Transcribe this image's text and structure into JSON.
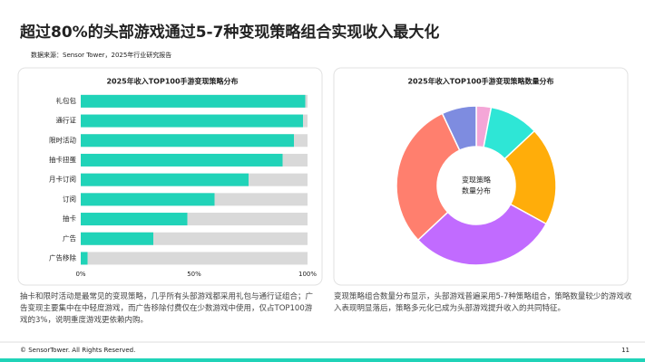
{
  "title": "超过80%的头部游戏通过5-7种变现策略组合实现收入最大化",
  "source": "数据来源：Sensor Tower，2025年行业研究报告",
  "notes": [
    "抽卡和限时活动是最常见的变现策略，几乎所有头部游戏都采用礼包与通行证组合；广告变现主要集中在中轻度游戏，而广告移除付费仅在少数游戏中使用，仅占TOP100游戏的3%，说明重度游戏更依赖内购。",
    "变现策略组合数量分布显示，头部游戏普遍采用5-7种策略组合，策略数量较少的游戏收入表现明显落后，策略多元化已成为头部游戏提升收入的共同特征。"
  ],
  "footer": "© SensorTower. All Rights Reserved.",
  "page_number": "11",
  "chart_data": [
    {
      "type": "bar",
      "orientation": "horizontal",
      "title": "2025年收入TOP100手游变现策略分布",
      "categories": [
        "礼包包",
        "通行证",
        "限时活动",
        "抽卡扭蛋",
        "月卡订阅",
        "订阅",
        "抽卡",
        "广告",
        "广告移除"
      ],
      "values": [
        99,
        98,
        94,
        89,
        74,
        59,
        47,
        32,
        3
      ],
      "color": "#20d3b8",
      "track_color": "#d9d9d9",
      "xlim": [
        0,
        100
      ],
      "xticks": [
        {
          "value": 0,
          "label": "0%"
        },
        {
          "value": 50,
          "label": "50%"
        },
        {
          "value": 100,
          "label": "100%"
        }
      ]
    },
    {
      "type": "pie",
      "title": "2025年收入TOP100手游变现策略数量分布",
      "donut": true,
      "center_label": [
        "变现策略",
        "数量分布"
      ],
      "values": [
        3,
        10,
        20,
        30,
        30,
        7
      ],
      "colors": [
        "#f4a6d7",
        "#2ee6d6",
        "#ffad0a",
        "#c16bff",
        "#ff7f6e",
        "#7e8ce0"
      ]
    }
  ]
}
